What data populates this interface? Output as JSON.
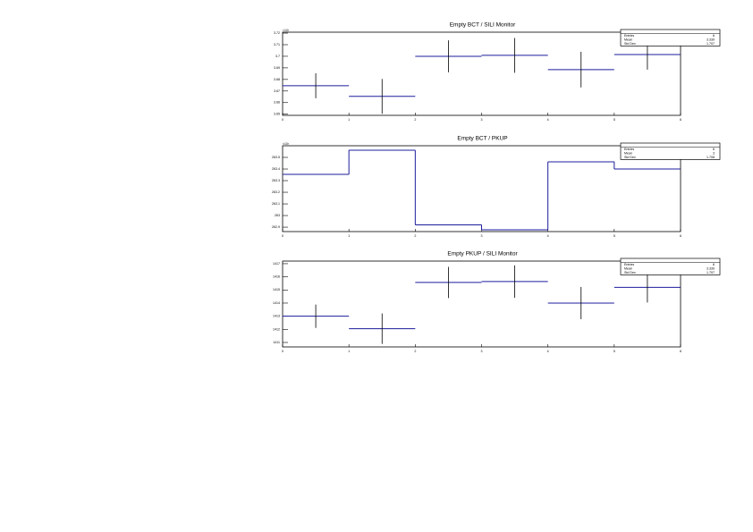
{
  "chart_data": [
    {
      "type": "histogram",
      "style": "errors",
      "title": "Empty BCT / SILI Monitor",
      "y_multiplier": "×10³",
      "color": "#1c1c9c",
      "bins": [
        0,
        1,
        2,
        3,
        4,
        5,
        6
      ],
      "values": [
        3.6746,
        3.6654,
        3.7,
        3.7008,
        3.6885,
        3.7015
      ],
      "errors": [
        0.0108,
        0.015,
        0.0138,
        0.015,
        0.0154,
        0.013
      ],
      "xlim": [
        0,
        6
      ],
      "xticks": [
        0,
        1,
        2,
        3,
        4,
        5,
        6
      ],
      "ylim": [
        3.649,
        3.7208
      ],
      "yticks": [
        3.65,
        3.66,
        3.67,
        3.68,
        3.69,
        3.7,
        3.71,
        3.72
      ],
      "stats": [
        {
          "label": "Entries",
          "value": 6
        },
        {
          "label": "Mean",
          "value": 3.339
        },
        {
          "label": "Std Dev",
          "value": 1.707
        }
      ]
    },
    {
      "type": "histogram",
      "style": "step",
      "title": "Empty BCT / PKUP",
      "y_multiplier": "×10³",
      "color": "#1c1c9c",
      "bins": [
        0,
        1,
        2,
        3,
        4,
        5,
        6
      ],
      "values": [
        263.354,
        263.562,
        262.92,
        262.877,
        263.462,
        263.4
      ],
      "xlim": [
        0,
        6
      ],
      "xticks": [
        0,
        1,
        2,
        3,
        4,
        5,
        6
      ],
      "ylim": [
        262.862,
        263.6
      ],
      "yticks": [
        262.9,
        263,
        263.1,
        263.2,
        263.3,
        263.4,
        263.5
      ],
      "stats": [
        {
          "label": "Entries",
          "value": 6
        },
        {
          "label": "Mean",
          "value": 3
        },
        {
          "label": "Std Dev",
          "value": 1.708
        }
      ]
    },
    {
      "type": "histogram",
      "style": "errors",
      "title": "Empty PKUP / SILI Monitor",
      "color": "#1c1c9c",
      "bins": [
        0,
        1,
        2,
        3,
        4,
        5,
        6
      ],
      "values": [
        1413,
        1412.05,
        1415.57,
        1415.64,
        1414,
        1415.2
      ],
      "errors": [
        0.89,
        1.16,
        1.19,
        1.23,
        1.23,
        1.16
      ],
      "xlim": [
        0,
        6
      ],
      "xticks": [
        0,
        1,
        2,
        3,
        4,
        5,
        6
      ],
      "ylim": [
        1410.66,
        1417.2
      ],
      "yticks": [
        1411,
        1412,
        1413,
        1414,
        1415,
        1416,
        1417
      ],
      "stats": [
        {
          "label": "Entries",
          "value": 6
        },
        {
          "label": "Mean",
          "value": 3.339
        },
        {
          "label": "Std Dev",
          "value": 1.707
        }
      ]
    }
  ]
}
